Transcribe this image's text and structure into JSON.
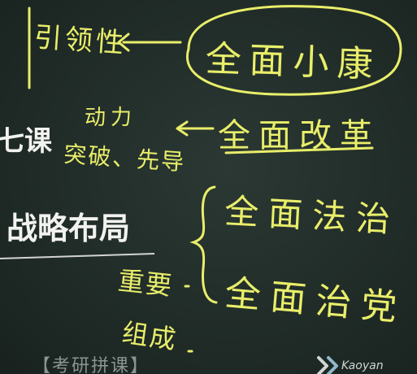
{
  "board": {
    "left_notes": {
      "yinling": "引领性",
      "dongli": "动力",
      "tupo_xiandao": "突破、先导",
      "zhongyao": "重要",
      "zucheng": "组成"
    },
    "right_notes": {
      "xiaokang": "全面小康",
      "gaige": "全面改革",
      "fazhi": "全面法治",
      "zhidang": "全面治党"
    },
    "printed_text": {
      "course_suffix": "七课",
      "strategy": "战略布局",
      "footer": "【考研拼课】"
    },
    "logo": {
      "text": "Kaoyan"
    },
    "colors": {
      "chalk_yellow": "#e9ee6a",
      "printed_white": "#f2f2ef",
      "board_green": "#1f2b27"
    }
  }
}
